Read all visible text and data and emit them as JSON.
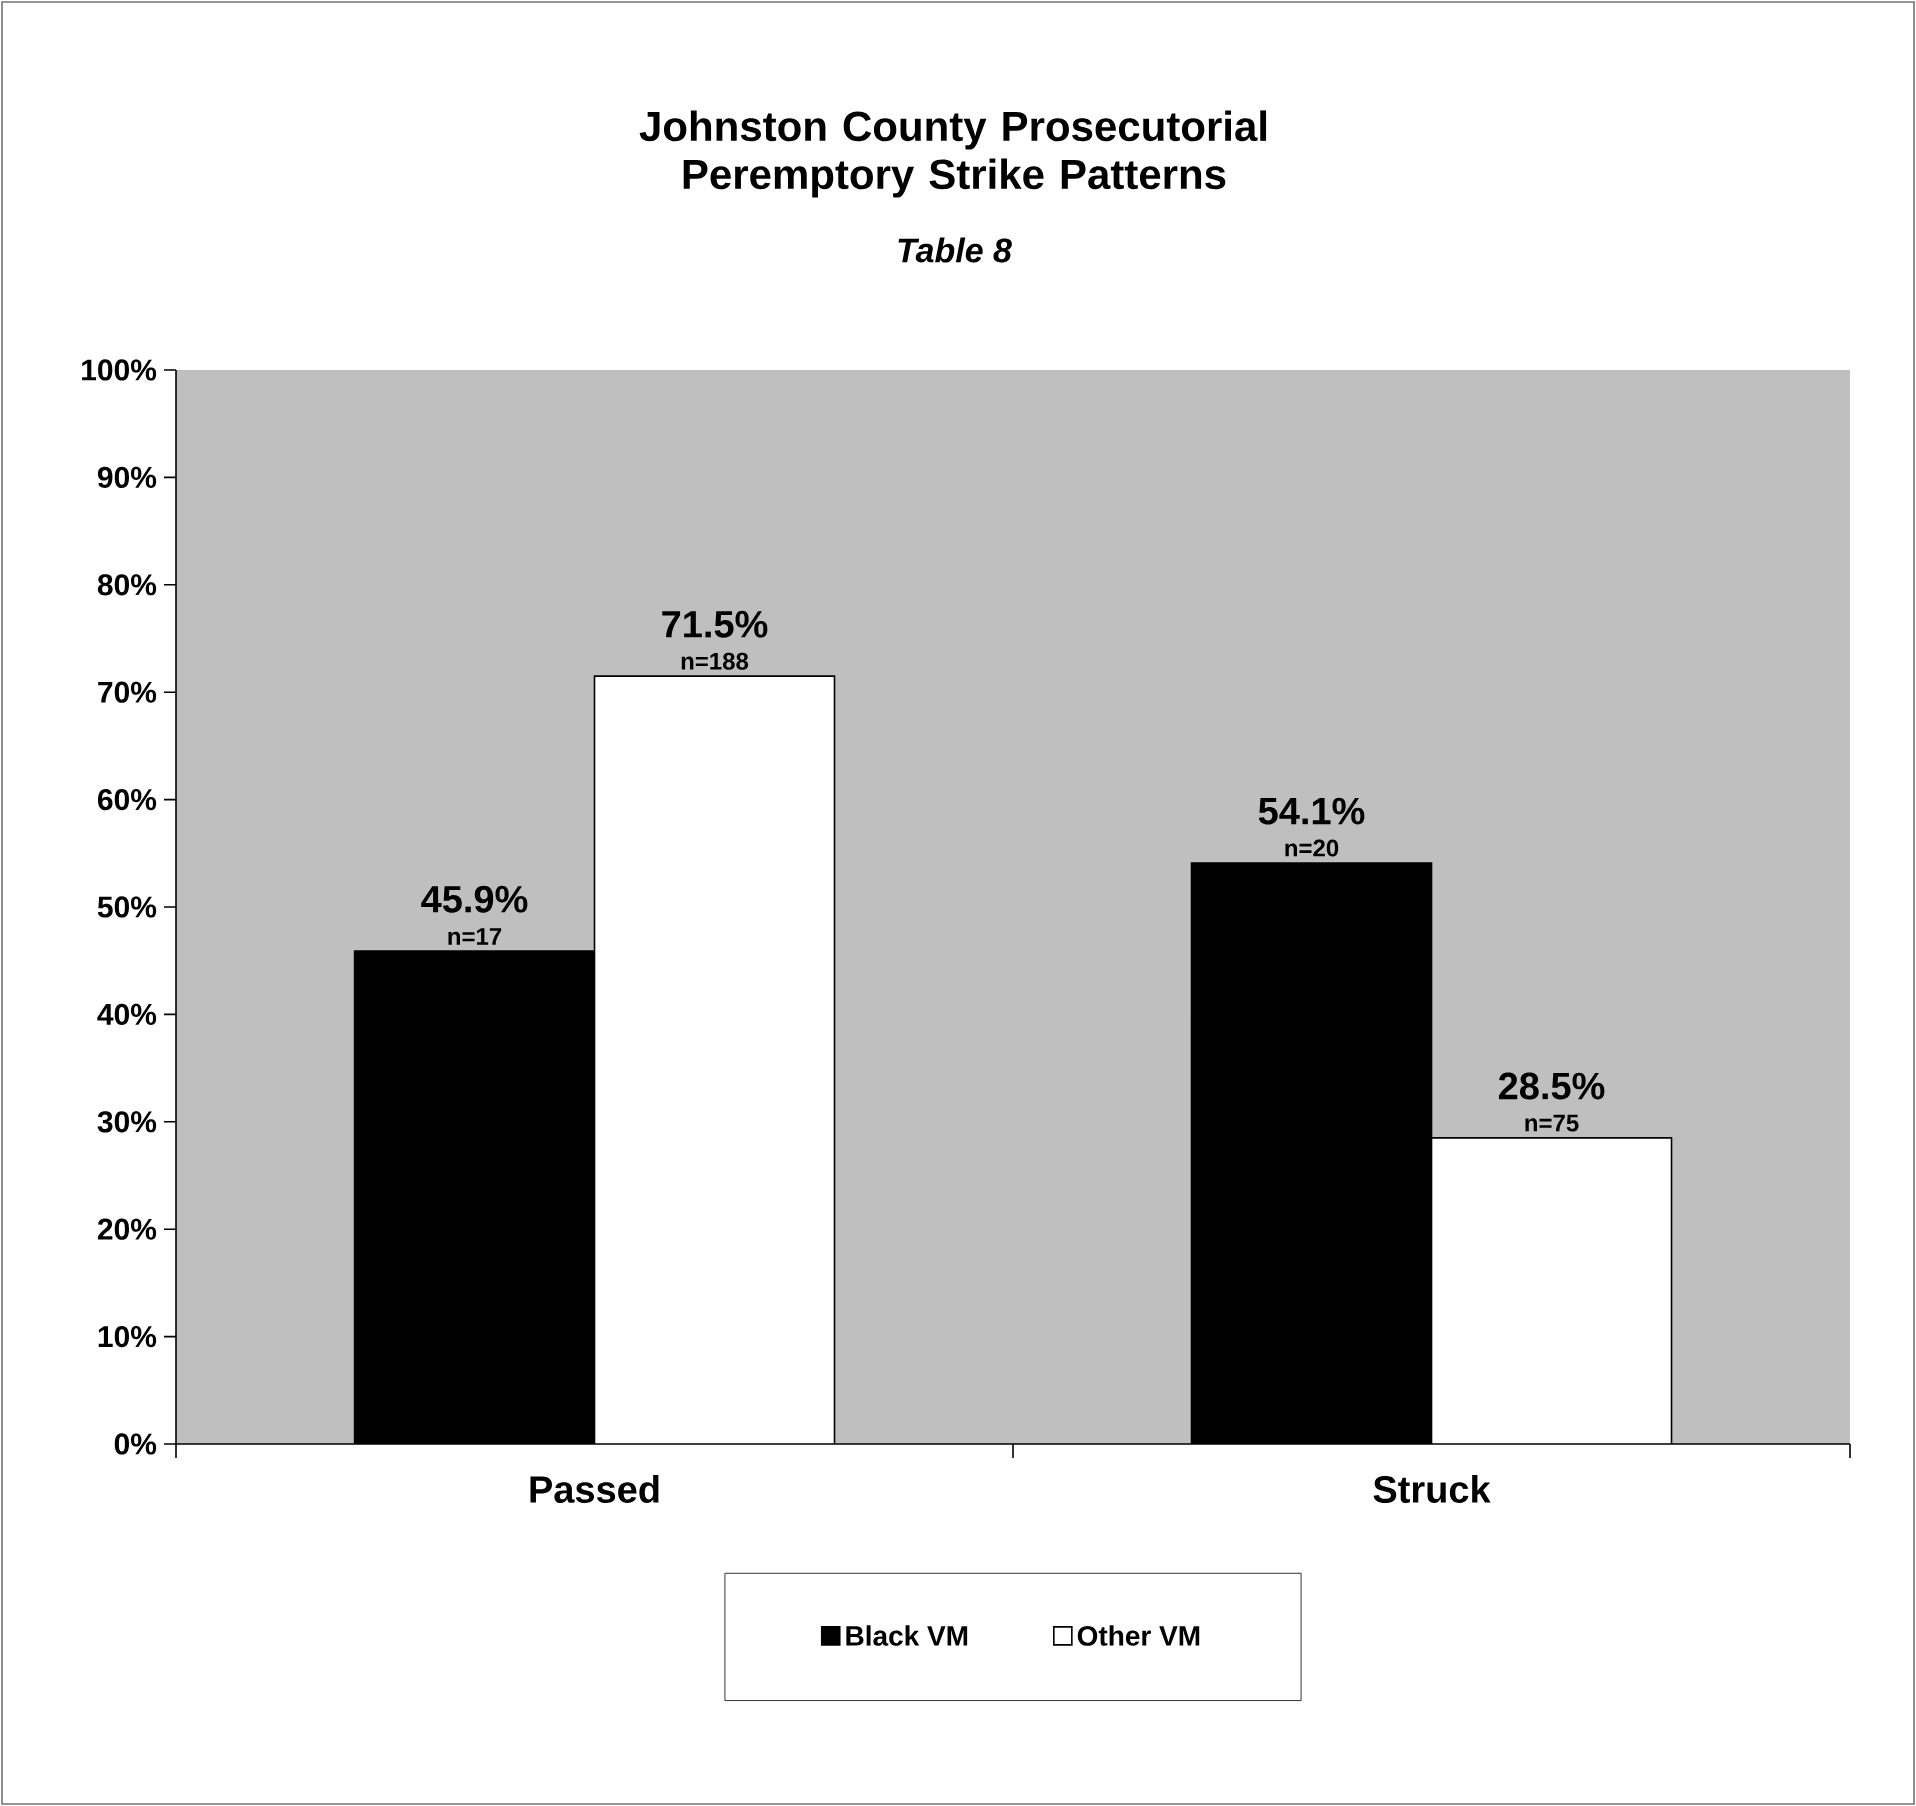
{
  "chart_data": {
    "type": "bar",
    "title": "Johnston County Prosecutorial Peremptory Strike Patterns",
    "subtitle": "Table 8",
    "categories": [
      "Passed",
      "Struck"
    ],
    "series": [
      {
        "name": "Black VM",
        "color": "#000000",
        "values": [
          45.9,
          54.1
        ],
        "value_labels": [
          "45.9%",
          "54.1%"
        ]
      },
      {
        "name": "Other VM",
        "color": "#ffffff",
        "values": [
          71.5,
          28.5
        ],
        "value_labels": [
          "71.5%",
          "28.5%"
        ]
      }
    ],
    "annotations": [
      "n=17",
      "n=20",
      "n=188",
      "n=75"
    ],
    "ylim": [
      0,
      100
    ],
    "yticks": [
      {
        "value": 0,
        "label": "0%"
      },
      {
        "value": 10,
        "label": "10%"
      },
      {
        "value": 20,
        "label": "20%"
      },
      {
        "value": 30,
        "label": "30%"
      },
      {
        "value": 40,
        "label": "40%"
      },
      {
        "value": 50,
        "label": "50%"
      },
      {
        "value": 60,
        "label": "60%"
      },
      {
        "value": 70,
        "label": "70%"
      },
      {
        "value": 80,
        "label": "80%"
      },
      {
        "value": 90,
        "label": "90%"
      },
      {
        "value": 100,
        "label": "100%"
      }
    ],
    "grid": false,
    "legend": "bottom"
  }
}
